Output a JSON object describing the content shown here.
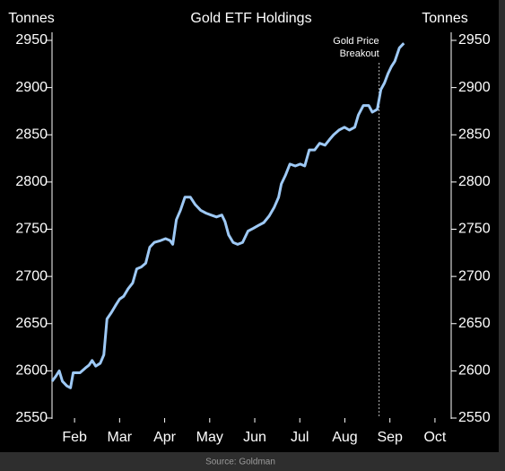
{
  "chart_data": {
    "type": "line",
    "title": "Gold ETF Holdings",
    "y_label": "Tonnes",
    "y2_label": "Tonnes",
    "source": "Source: Goldman",
    "xlim": [
      1,
      9.86
    ],
    "xticks": [
      {
        "value": 1.5,
        "label": "Feb"
      },
      {
        "value": 2.5,
        "label": "Mar"
      },
      {
        "value": 3.5,
        "label": "Apr"
      },
      {
        "value": 4.5,
        "label": "May"
      },
      {
        "value": 5.5,
        "label": "Jun"
      },
      {
        "value": 6.5,
        "label": "Jul"
      },
      {
        "value": 7.5,
        "label": "Aug"
      },
      {
        "value": 8.5,
        "label": "Sep"
      },
      {
        "value": 9.5,
        "label": "Oct"
      }
    ],
    "ylim": [
      2550,
      2950
    ],
    "yticks": [
      2550,
      2600,
      2650,
      2700,
      2750,
      2800,
      2850,
      2900,
      2950
    ],
    "y2lim": [
      2550,
      2950
    ],
    "y2ticks": [
      2550,
      2600,
      2650,
      2700,
      2750,
      2800,
      2850,
      2900,
      2950
    ],
    "annotation": {
      "lines": [
        "Gold Price",
        "Breakout"
      ],
      "x": 8.26
    },
    "series": [
      {
        "color": "#9ec9f5",
        "x": [
          1.0,
          1.08,
          1.16,
          1.23,
          1.33,
          1.41,
          1.47,
          1.62,
          1.74,
          1.82,
          1.89,
          1.97,
          2.07,
          2.15,
          2.22,
          2.32,
          2.42,
          2.5,
          2.59,
          2.69,
          2.79,
          2.88,
          2.98,
          3.08,
          3.17,
          3.27,
          3.41,
          3.52,
          3.62,
          3.68,
          3.76,
          3.85,
          3.95,
          4.07,
          4.18,
          4.3,
          4.42,
          4.53,
          4.65,
          4.77,
          4.84,
          4.92,
          5.02,
          5.12,
          5.23,
          5.35,
          5.47,
          5.58,
          5.7,
          5.82,
          5.93,
          6.03,
          6.09,
          6.18,
          6.28,
          6.4,
          6.51,
          6.61,
          6.71,
          6.83,
          6.94,
          7.06,
          7.16,
          7.25,
          7.37,
          7.49,
          7.6,
          7.72,
          7.8,
          7.91,
          8.03,
          8.11,
          8.22,
          8.3,
          8.38,
          8.46,
          8.53,
          8.61,
          8.71,
          8.81
        ],
        "values": [
          2589,
          2594,
          2600,
          2589,
          2584,
          2582,
          2598,
          2598,
          2603,
          2606,
          2611,
          2605,
          2608,
          2617,
          2655,
          2662,
          2670,
          2676,
          2679,
          2687,
          2693,
          2708,
          2710,
          2714,
          2731,
          2736,
          2738,
          2740,
          2738,
          2734,
          2760,
          2770,
          2784,
          2784,
          2776,
          2770,
          2767,
          2765,
          2763,
          2765,
          2758,
          2744,
          2736,
          2734,
          2736,
          2748,
          2751,
          2754,
          2757,
          2764,
          2773,
          2784,
          2798,
          2807,
          2819,
          2817,
          2819,
          2817,
          2834,
          2834,
          2841,
          2839,
          2845,
          2850,
          2855,
          2858,
          2855,
          2858,
          2871,
          2881,
          2881,
          2874,
          2877,
          2898,
          2905,
          2915,
          2922,
          2928,
          2942,
          2947
        ]
      }
    ]
  }
}
